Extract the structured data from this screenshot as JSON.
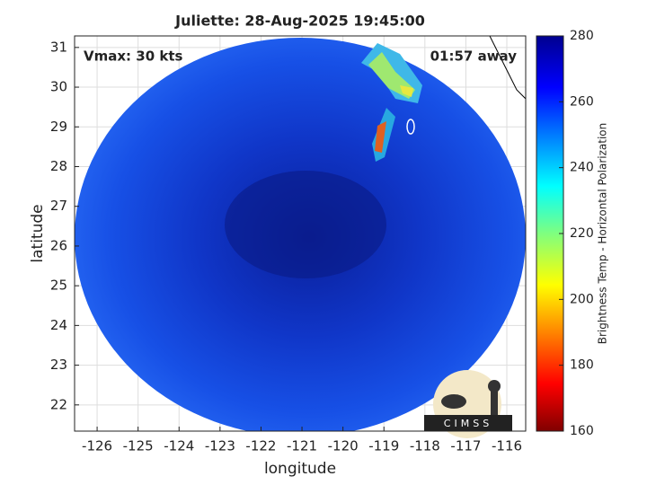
{
  "chart_data": {
    "type": "map",
    "title": "Juliette: 28-Aug-2025 19:45:00",
    "annotations": [
      "Vmax: 30 kts",
      "01:57 away"
    ],
    "xlabel": "longitude",
    "ylabel": "latitude",
    "xlim": [
      -126.55,
      -115.54
    ],
    "ylim": [
      21.34,
      31.29
    ],
    "xticks": [
      -126,
      -125,
      -124,
      -123,
      -122,
      -121,
      -120,
      -119,
      -118,
      -117,
      -116
    ],
    "yticks": [
      22,
      23,
      24,
      25,
      26,
      27,
      28,
      29,
      30,
      31
    ],
    "grid": true,
    "colorbar": {
      "label": "Brightness Temp - Horizontal Polarization",
      "lim": [
        160,
        280
      ],
      "ticks": [
        160,
        180,
        200,
        220,
        240,
        260,
        280
      ]
    },
    "logo": "CIMSS"
  }
}
